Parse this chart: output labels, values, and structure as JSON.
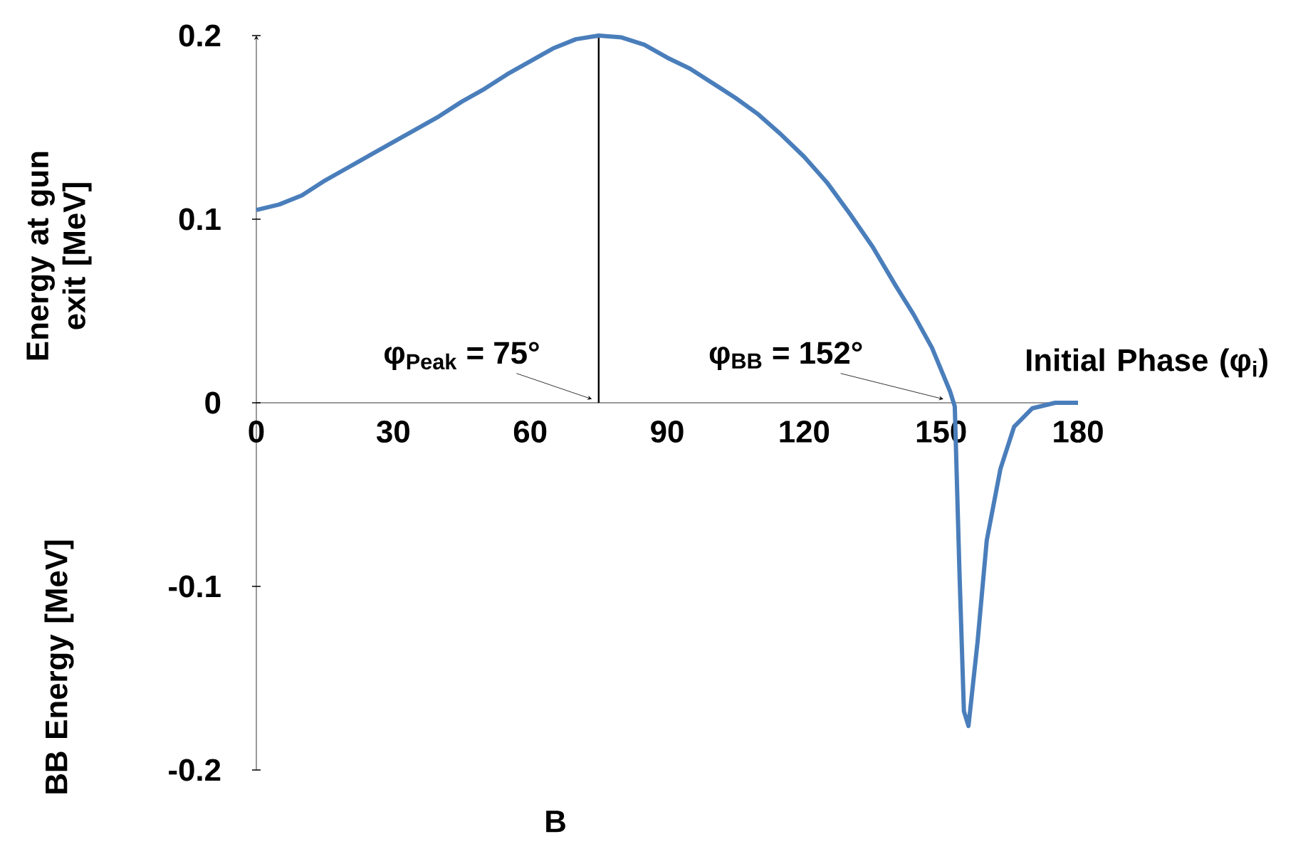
{
  "chart_data": {
    "type": "line",
    "title": "B",
    "xlabel": "Initial Phase (φ$_{i}$)",
    "ylabel": "Energy at gun exit [MeV]",
    "x": [
      0,
      5,
      10,
      15,
      20,
      25,
      30,
      35,
      40,
      45,
      50,
      55,
      60,
      65,
      70,
      75,
      80,
      85,
      90,
      95,
      100,
      105,
      110,
      115,
      120,
      125,
      130,
      135,
      140,
      144,
      148,
      150,
      152,
      153,
      154,
      155,
      156,
      158,
      160,
      163,
      166,
      170,
      175,
      180
    ],
    "series": [
      {
        "color": "#4a7ebb",
        "values": [
          0.105,
          0.108,
          0.113,
          0.121,
          0.128,
          0.135,
          0.142,
          0.149,
          0.156,
          0.164,
          0.171,
          0.179,
          0.186,
          0.193,
          0.198,
          0.2,
          0.199,
          0.195,
          0.188,
          0.182,
          0.174,
          0.166,
          0.157,
          0.146,
          0.134,
          0.12,
          0.103,
          0.085,
          0.064,
          0.048,
          0.03,
          0.018,
          0.006,
          -0.002,
          -0.09,
          -0.168,
          -0.176,
          -0.13,
          -0.075,
          -0.036,
          -0.013,
          -0.003,
          0,
          0
        ]
      }
    ],
    "xlim": [
      0,
      180
    ],
    "xticks": [
      0,
      30,
      60,
      90,
      120,
      150,
      180
    ],
    "ylim": [
      -0.2,
      0.2
    ],
    "yticks": [
      -0.2,
      -0.1,
      0,
      0.1,
      0.2
    ],
    "ref_lines": [
      {
        "axis": "x",
        "value": 75,
        "color": "#000000"
      }
    ],
    "annotations": [
      {
        "text": "φ$_{Peak}$ = 75°",
        "x": 75,
        "y": 0
      },
      {
        "text": "φ$_{BB}$ = 152°",
        "x": 152,
        "y": 0
      },
      "BB Energy [MeV]"
    ],
    "marker": "none",
    "line_style": "solid"
  }
}
